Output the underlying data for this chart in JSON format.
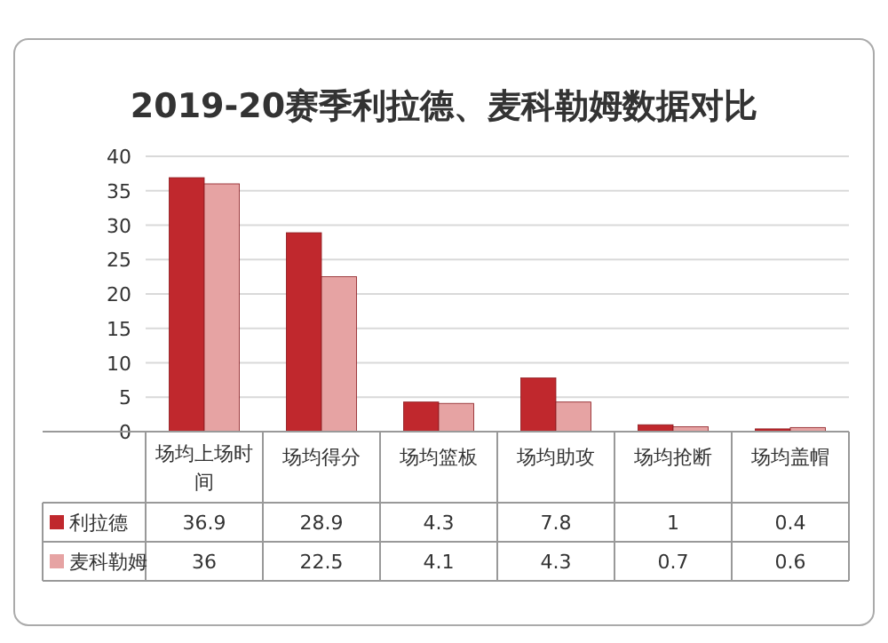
{
  "chart_data": {
    "type": "bar",
    "title": "2019-20赛季利拉德、麦科勒姆数据对比",
    "categories": [
      "场均上场时间",
      "场均得分",
      "场均篮板",
      "场均助攻",
      "场均抢断",
      "场均盖帽"
    ],
    "series": [
      {
        "name": "利拉德",
        "color": "#c0282d",
        "values": [
          36.9,
          28.9,
          4.3,
          7.8,
          1,
          0.4
        ]
      },
      {
        "name": "麦科勒姆",
        "color": "#e6a3a3",
        "values": [
          36,
          22.5,
          4.1,
          4.3,
          0.7,
          0.6
        ]
      }
    ],
    "ylim": [
      0,
      40
    ],
    "yticks": [
      0,
      5,
      10,
      15,
      20,
      25,
      30,
      35,
      40
    ],
    "grid": "y",
    "legend": "bottom",
    "data_labels": true
  }
}
